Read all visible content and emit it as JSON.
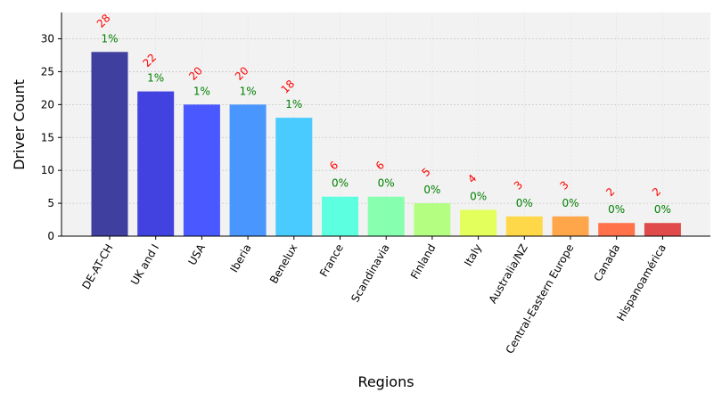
{
  "chart_data": {
    "type": "bar",
    "title": "",
    "xlabel": "Regions",
    "ylabel": "Driver Count",
    "ylim": [
      0,
      34
    ],
    "yticks": [
      0,
      5,
      10,
      15,
      20,
      25,
      30
    ],
    "grid": true,
    "legend": "none",
    "categories": [
      "DE-AT-CH",
      "UK and I",
      "USA",
      "Iberia",
      "Benelux",
      "France",
      "Scandinavia",
      "Finland",
      "Italy",
      "Australia/NZ",
      "Central-Eastern Europe",
      "Canada",
      "Hispanoamérica"
    ],
    "values": [
      28,
      22,
      20,
      20,
      18,
      6,
      6,
      5,
      4,
      3,
      3,
      2,
      2
    ],
    "value_labels": [
      "28",
      "22",
      "20",
      "20",
      "18",
      "6",
      "6",
      "5",
      "4",
      "3",
      "3",
      "2",
      "2"
    ],
    "percent_labels": [
      "1%",
      "1%",
      "1%",
      "1%",
      "1%",
      "0%",
      "0%",
      "0%",
      "0%",
      "0%",
      "0%",
      "0%",
      "0%"
    ],
    "colors": [
      "#3f3f9f",
      "#4242e0",
      "#4a58ff",
      "#4a96ff",
      "#4acbff",
      "#5cffe0",
      "#86ffaf",
      "#b4ff82",
      "#e3ff5c",
      "#ffd84a",
      "#ffa64a",
      "#ff724a",
      "#e04a4a"
    ],
    "colors_meta": {
      "value_label": "#ff0000",
      "percent_label": "#008000",
      "plot_background": "#f2f2f2"
    }
  }
}
